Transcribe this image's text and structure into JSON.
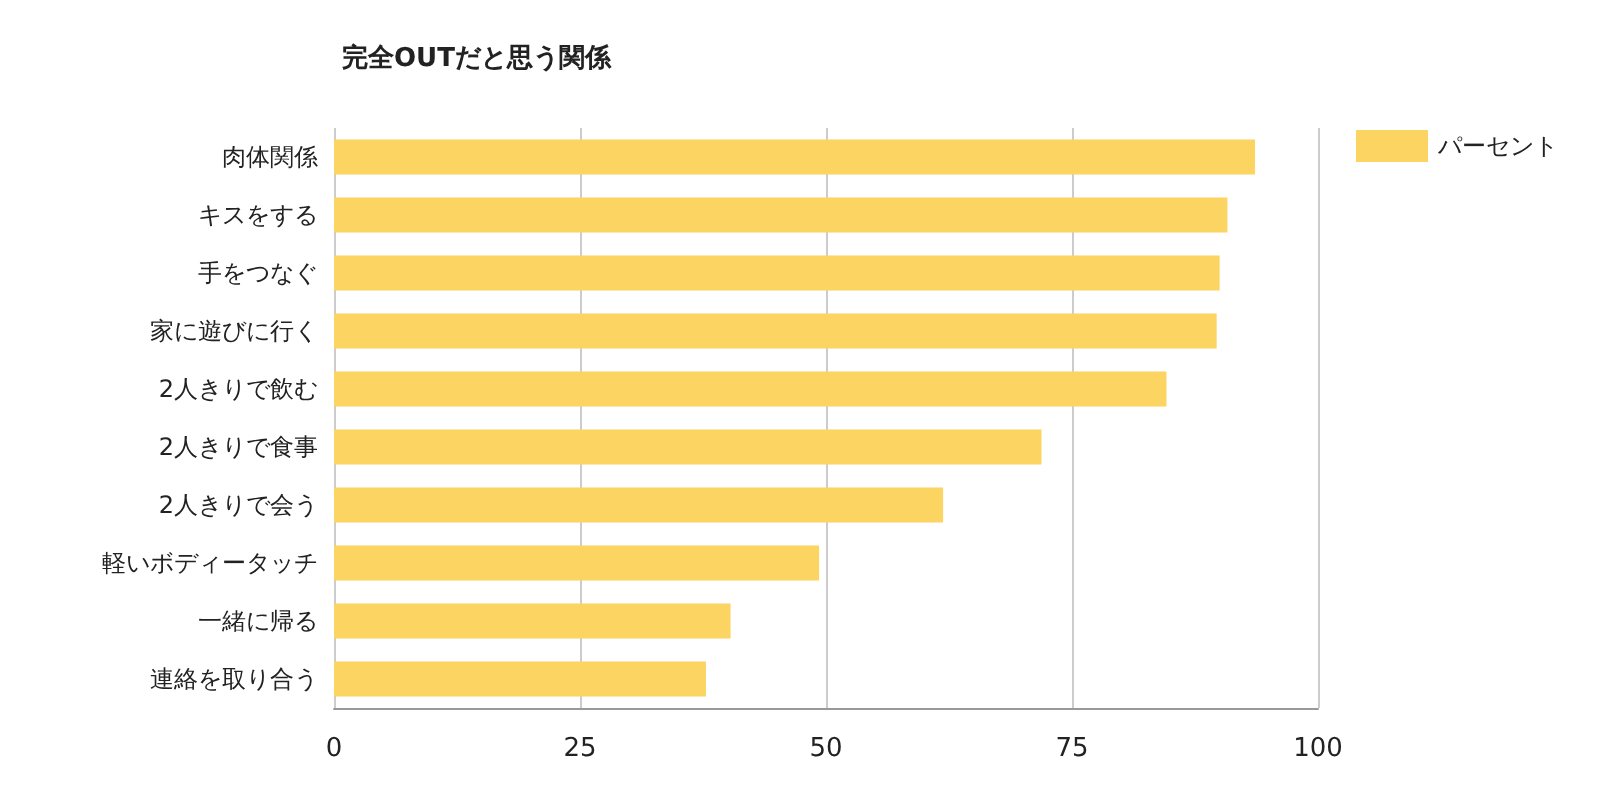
{
  "chart_data": {
    "type": "bar",
    "orientation": "horizontal",
    "title": "完全OUTだと思う関係",
    "categories": [
      "肉体関係",
      "キスをする",
      "手をつなぐ",
      "家に遊びに行く",
      "2人きりで飲む",
      "2人きりで食事",
      "2人きりで会う",
      "軽いボディータッチ",
      "一緒に帰る",
      "連絡を取り合う"
    ],
    "series": [
      {
        "name": "パーセント",
        "color": "#fcd462",
        "values": [
          93.6,
          90.8,
          90.0,
          89.7,
          84.6,
          71.9,
          61.9,
          49.3,
          40.3,
          37.8
        ]
      }
    ],
    "xlim": [
      0,
      100
    ],
    "xticks": [
      0,
      25,
      50,
      75,
      100
    ],
    "grid": "x",
    "legend": "top right"
  }
}
